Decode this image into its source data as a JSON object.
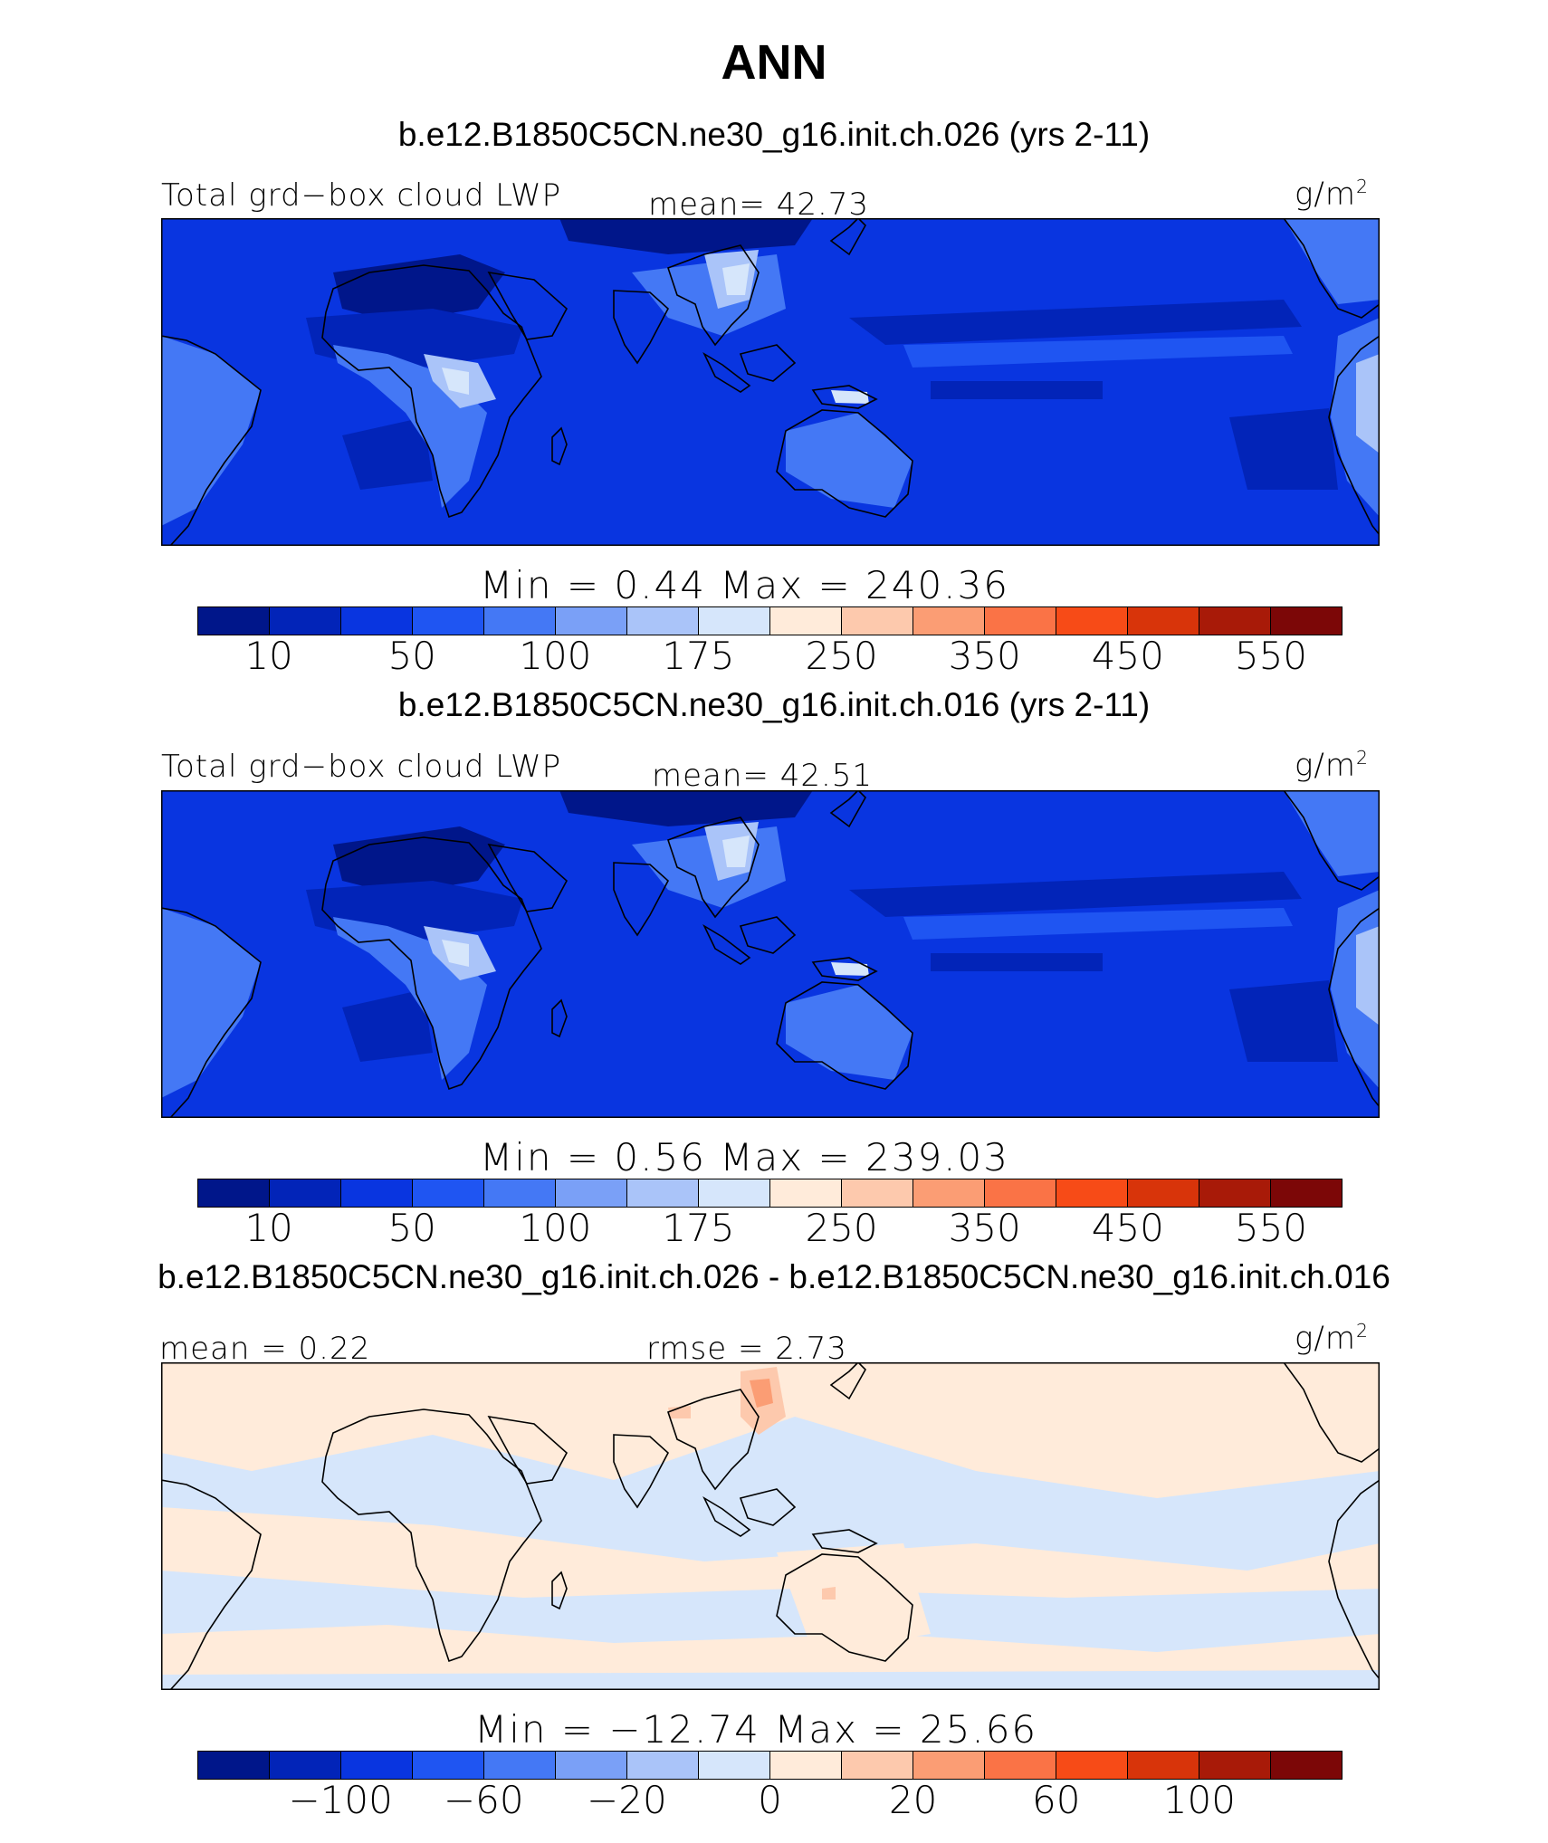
{
  "title": "ANN",
  "colors": [
    "#00168a",
    "#0224b8",
    "#0935e0",
    "#1f55f2",
    "#4478f5",
    "#7aa0f7",
    "#aac4f9",
    "#d6e6fb",
    "#ffebda",
    "#fdc9ad",
    "#fb9d74",
    "#fa7346",
    "#f74b17",
    "#d8340a",
    "#a81a08",
    "#7c0707"
  ],
  "panels": [
    {
      "case": "b.e12.B1850C5CN.ne30_g16.init.ch.026 (yrs 2-11)",
      "left_label": "Total grd−box cloud LWP",
      "center_label": "mean=  42.73",
      "units": "g/m",
      "units_exp": "2",
      "minmax": "Min  =    0.44  Max  = 240.36",
      "ticks": [
        "10",
        "50",
        "100",
        "175",
        "250",
        "350",
        "450",
        "550"
      ],
      "map_style": "field"
    },
    {
      "case": "b.e12.B1850C5CN.ne30_g16.init.ch.016 (yrs 2-11)",
      "left_label": "Total grd−box cloud LWP",
      "center_label": "mean=  42.51",
      "units": "g/m",
      "units_exp": "2",
      "minmax": "Min  =    0.56  Max  = 239.03",
      "ticks": [
        "10",
        "50",
        "100",
        "175",
        "250",
        "350",
        "450",
        "550"
      ],
      "map_style": "field"
    },
    {
      "case": "b.e12.B1850C5CN.ne30_g16.init.ch.026 - b.e12.B1850C5CN.ne30_g16.init.ch.016",
      "left_label": "mean  =    0.22",
      "center_label": "rmse  =    2.73",
      "units": "g/m",
      "units_exp": "2",
      "minmax": "Min  = −12.74  Max  =   25.66",
      "ticks": [
        "−100",
        "−60",
        "−20",
        "0",
        "20",
        "60",
        "100"
      ],
      "map_style": "diff"
    }
  ]
}
